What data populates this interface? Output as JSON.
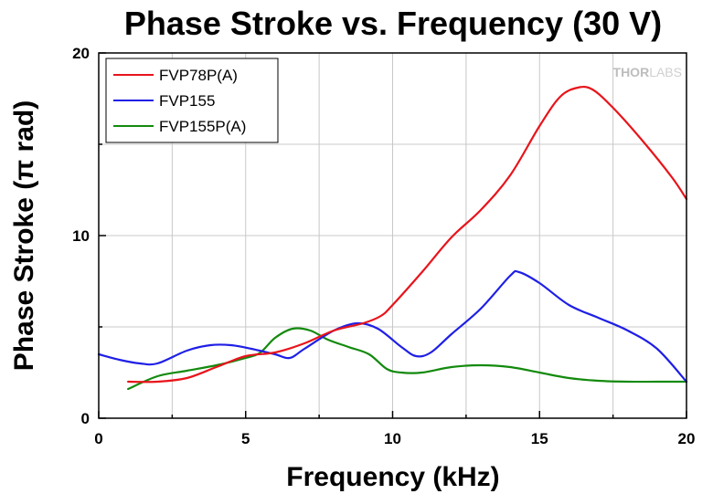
{
  "chart_data": {
    "type": "line",
    "title": "Phase Stroke vs. Frequency (30 V)",
    "xlabel": "Frequency (kHz)",
    "ylabel": "Phase Stroke (π rad)",
    "xlim": [
      0,
      20
    ],
    "ylim": [
      0,
      20
    ],
    "x_ticks": [
      "0",
      "5",
      "10",
      "15",
      "20"
    ],
    "y_ticks": [
      "0",
      "10",
      "20"
    ],
    "grid": true,
    "legend_position": "top-left",
    "watermark": {
      "brand_bold": "THOR",
      "brand_light": "LABS"
    },
    "series": [
      {
        "name": "FVP78P(A)",
        "color": "#e8141b",
        "points": [
          [
            1.0,
            2.0
          ],
          [
            2.0,
            2.0
          ],
          [
            3.0,
            2.2
          ],
          [
            4.0,
            2.8
          ],
          [
            5.0,
            3.4
          ],
          [
            6.0,
            3.6
          ],
          [
            7.0,
            4.1
          ],
          [
            8.0,
            4.8
          ],
          [
            9.0,
            5.2
          ],
          [
            9.6,
            5.6
          ],
          [
            10.0,
            6.2
          ],
          [
            11.0,
            8.0
          ],
          [
            12.0,
            9.9
          ],
          [
            13.0,
            11.4
          ],
          [
            14.0,
            13.3
          ],
          [
            15.0,
            16.0
          ],
          [
            15.7,
            17.6
          ],
          [
            16.3,
            18.1
          ],
          [
            16.8,
            18.0
          ],
          [
            17.5,
            17.0
          ],
          [
            18.5,
            15.2
          ],
          [
            19.5,
            13.2
          ],
          [
            20.0,
            12.0
          ]
        ]
      },
      {
        "name": "FVP155",
        "color": "#1f1fe6",
        "points": [
          [
            0.0,
            3.5
          ],
          [
            0.7,
            3.2
          ],
          [
            1.4,
            3.0
          ],
          [
            2.0,
            3.0
          ],
          [
            3.0,
            3.7
          ],
          [
            3.8,
            4.0
          ],
          [
            4.5,
            4.0
          ],
          [
            5.2,
            3.8
          ],
          [
            6.0,
            3.5
          ],
          [
            6.5,
            3.3
          ],
          [
            7.0,
            3.8
          ],
          [
            8.0,
            4.8
          ],
          [
            8.8,
            5.2
          ],
          [
            9.5,
            4.9
          ],
          [
            10.3,
            3.9
          ],
          [
            10.8,
            3.4
          ],
          [
            11.3,
            3.6
          ],
          [
            12.0,
            4.6
          ],
          [
            13.0,
            6.0
          ],
          [
            14.0,
            7.8
          ],
          [
            14.3,
            8.0
          ],
          [
            15.0,
            7.4
          ],
          [
            16.0,
            6.2
          ],
          [
            17.0,
            5.5
          ],
          [
            18.0,
            4.8
          ],
          [
            19.0,
            3.8
          ],
          [
            20.0,
            2.0
          ]
        ]
      },
      {
        "name": "FVP155P(A)",
        "color": "#138a0d",
        "points": [
          [
            1.0,
            1.6
          ],
          [
            2.0,
            2.3
          ],
          [
            3.0,
            2.6
          ],
          [
            4.0,
            2.9
          ],
          [
            5.0,
            3.3
          ],
          [
            5.5,
            3.6
          ],
          [
            6.0,
            4.4
          ],
          [
            6.6,
            4.9
          ],
          [
            7.2,
            4.8
          ],
          [
            7.8,
            4.3
          ],
          [
            8.5,
            3.9
          ],
          [
            9.2,
            3.5
          ],
          [
            9.8,
            2.7
          ],
          [
            10.3,
            2.5
          ],
          [
            11.0,
            2.5
          ],
          [
            12.0,
            2.8
          ],
          [
            13.0,
            2.9
          ],
          [
            14.0,
            2.8
          ],
          [
            15.0,
            2.5
          ],
          [
            16.0,
            2.2
          ],
          [
            17.0,
            2.05
          ],
          [
            18.0,
            2.0
          ],
          [
            19.0,
            2.0
          ],
          [
            20.0,
            2.0
          ]
        ]
      }
    ]
  }
}
